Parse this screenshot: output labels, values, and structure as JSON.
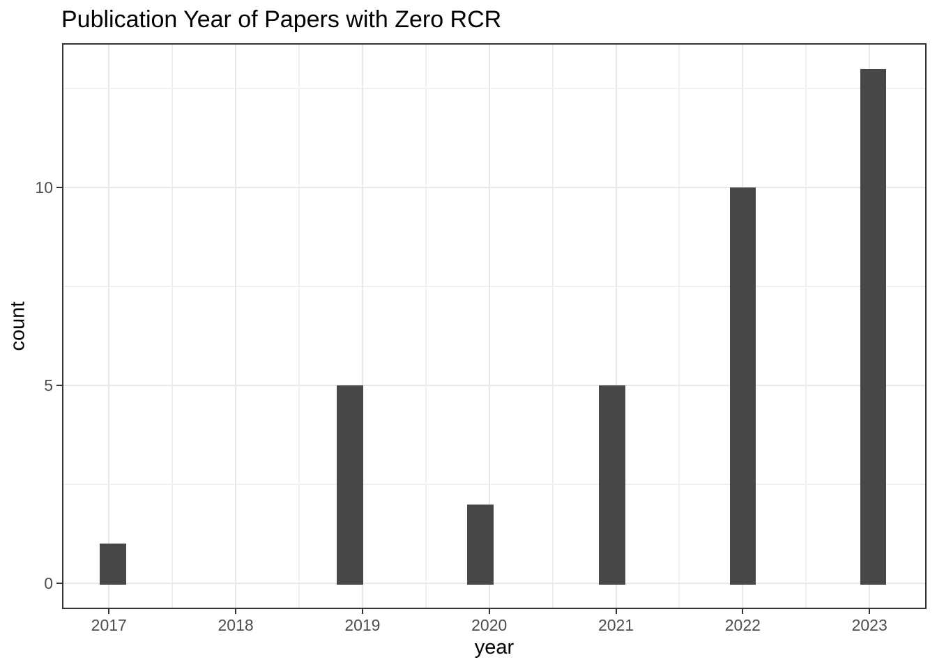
{
  "chart_data": {
    "type": "bar",
    "title": "Publication Year of Papers with Zero RCR",
    "xlabel": "year",
    "ylabel": "count",
    "x_tick_values": [
      2017,
      2018,
      2019,
      2020,
      2021,
      2022,
      2023
    ],
    "x_tick_labels": [
      "2017",
      "2018",
      "2019",
      "2020",
      "2021",
      "2022",
      "2023"
    ],
    "y_tick_values": [
      0,
      5,
      10
    ],
    "y_tick_labels": [
      "0",
      "5",
      "10"
    ],
    "x_minor_gridlines": [
      2017.5,
      2018.5,
      2019.5,
      2020.5,
      2021.5,
      2022.5
    ],
    "y_minor_gridlines": [
      2.5,
      7.5,
      12.5
    ],
    "xlim": [
      2016.63,
      2023.45
    ],
    "ylim": [
      -0.65,
      13.65
    ],
    "grid": "major+minor on, white panel, dark panel border (ggplot theme_bw style)",
    "legend_position": "none",
    "counts_by_year": {
      "2017": 1,
      "2018": 0,
      "2019": 5,
      "2020": 2,
      "2021": 5,
      "2022": 10,
      "2023": 13
    },
    "bars": [
      {
        "year": 2017,
        "count": 1,
        "bin_center": 2017.03
      },
      {
        "year": 2019,
        "count": 5,
        "bin_center": 2018.9
      },
      {
        "year": 2020,
        "count": 2,
        "bin_center": 2019.93
      },
      {
        "year": 2021,
        "count": 5,
        "bin_center": 2020.97
      },
      {
        "year": 2022,
        "count": 10,
        "bin_center": 2022.0
      },
      {
        "year": 2023,
        "count": 13,
        "bin_center": 2023.03
      }
    ],
    "bar_width_years": 0.207,
    "colors": {
      "bar_fill": "#474747",
      "grid_major": "#E8E8E8",
      "grid_minor": "#F0F0F0",
      "panel_border": "#333333",
      "tick_mark": "#333333",
      "tick_label": "#4D4D4D",
      "axis_title": "#000000",
      "plot_title": "#000000",
      "background": "#FFFFFF"
    }
  }
}
